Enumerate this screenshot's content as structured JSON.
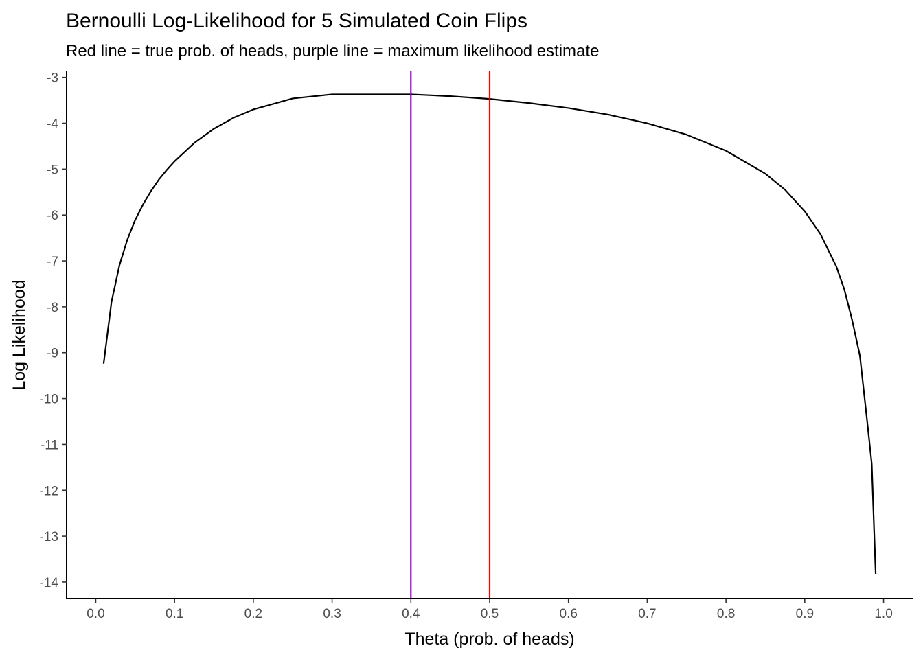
{
  "chart_data": {
    "type": "line",
    "title": "Bernoulli Log-Likelihood for 5 Simulated Coin Flips",
    "subtitle": "Red line = true prob. of heads, purple line = maximum likelihood estimate",
    "xlabel": "Theta (prob. of heads)",
    "ylabel": "Log Likelihood",
    "xlim": [
      -0.037,
      1.037
    ],
    "ylim": [
      -14.36,
      -2.87
    ],
    "x_ticks": [
      0.0,
      0.1,
      0.2,
      0.3,
      0.4,
      0.5,
      0.6,
      0.7,
      0.8,
      0.9,
      1.0
    ],
    "x_tick_labels": [
      "0.0",
      "0.1",
      "0.2",
      "0.3",
      "0.4",
      "0.5",
      "0.6",
      "0.7",
      "0.8",
      "0.9",
      "1.0"
    ],
    "y_ticks": [
      -3,
      -4,
      -5,
      -6,
      -7,
      -8,
      -9,
      -10,
      -11,
      -12,
      -13,
      -14
    ],
    "y_tick_labels": [
      "-3",
      "-4",
      "-5",
      "-6",
      "-7",
      "-8",
      "-9",
      "-10",
      "-11",
      "-12",
      "-13",
      "-14"
    ],
    "grid": false,
    "series": [
      {
        "color": "#000000",
        "x": [
          0.01,
          0.02,
          0.03,
          0.04,
          0.05,
          0.06,
          0.07,
          0.08,
          0.09,
          0.1,
          0.125,
          0.15,
          0.175,
          0.2,
          0.25,
          0.3,
          0.35,
          0.4,
          0.45,
          0.5,
          0.55,
          0.6,
          0.65,
          0.7,
          0.75,
          0.8,
          0.85,
          0.875,
          0.9,
          0.92,
          0.94,
          0.95,
          0.96,
          0.97,
          0.98,
          0.985,
          0.99
        ],
        "y": [
          -9.24,
          -7.89,
          -7.1,
          -6.54,
          -6.11,
          -5.77,
          -5.48,
          -5.23,
          -5.02,
          -4.83,
          -4.43,
          -4.12,
          -3.88,
          -3.7,
          -3.46,
          -3.37,
          -3.37,
          -3.37,
          -3.41,
          -3.47,
          -3.56,
          -3.67,
          -3.81,
          -4.0,
          -4.25,
          -4.6,
          -5.1,
          -5.45,
          -5.92,
          -6.42,
          -7.12,
          -7.61,
          -8.28,
          -9.07,
          -10.62,
          -11.42,
          -13.82
        ]
      }
    ],
    "vlines": [
      {
        "x": 0.4,
        "color": "#9400d3"
      },
      {
        "x": 0.5,
        "color": "#ff0000"
      }
    ]
  }
}
